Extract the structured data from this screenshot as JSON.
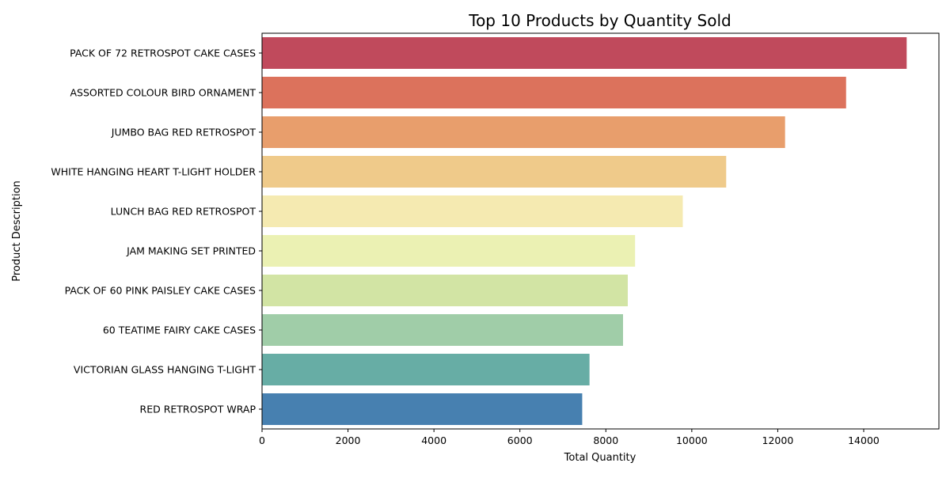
{
  "chart_data": {
    "type": "bar",
    "orientation": "horizontal",
    "title": "Top 10 Products by Quantity Sold",
    "xlabel": "Total Quantity",
    "ylabel": "Product Description",
    "xlim": [
      0,
      15750
    ],
    "xticks": [
      0,
      2000,
      4000,
      6000,
      8000,
      10000,
      12000,
      14000
    ],
    "grid": false,
    "categories": [
      "PACK OF 72 RETROSPOT CAKE CASES",
      "ASSORTED COLOUR BIRD ORNAMENT",
      "JUMBO BAG RED RETROSPOT",
      "WHITE HANGING HEART T-LIGHT HOLDER",
      "LUNCH BAG RED RETROSPOT",
      "JAM MAKING SET PRINTED",
      "PACK OF 60 PINK PAISLEY CAKE CASES",
      "60 TEATIME FAIRY CAKE CASES",
      "VICTORIAN GLASS HANGING T-LIGHT",
      "RED RETROSPOT WRAP "
    ],
    "values": [
      15000,
      13590,
      12170,
      10800,
      9790,
      8680,
      8510,
      8400,
      7620,
      7450
    ],
    "colors": [
      "#c04a5c",
      "#dc725c",
      "#e89e6c",
      "#efca8a",
      "#f5eab1",
      "#ebf1b3",
      "#d2e4a4",
      "#a0cda8",
      "#67ada5",
      "#4780b0"
    ]
  }
}
